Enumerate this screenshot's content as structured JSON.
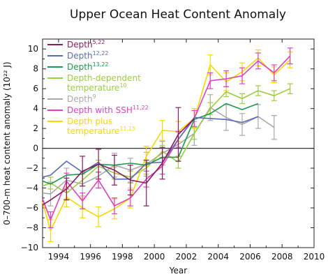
{
  "chart_data": {
    "type": "line",
    "title": "Upper Ocean Heat Content Anomaly",
    "xlabel": "Year",
    "ylabel": "0–700-m heat content anomaly (10²² J)",
    "xlim": [
      1993,
      2010
    ],
    "ylim": [
      -10,
      11
    ],
    "xticks": [
      1994,
      1996,
      1998,
      2000,
      2002,
      2004,
      2006,
      2008,
      2010
    ],
    "yticks": [
      -10,
      -8,
      -6,
      -4,
      -2,
      0,
      2,
      4,
      6,
      8,
      10
    ],
    "grid": false,
    "zero_line": true,
    "legend_position": "top-left",
    "series": [
      {
        "name": "Depth",
        "sup": "5,22",
        "color": "#8b1a5c",
        "x": [
          1993,
          1993.5,
          1994.5,
          1995.5,
          1996.5,
          1997.5,
          1998.5,
          1999.5,
          2000.5,
          2001.5,
          2002.5
        ],
        "y": [
          -5.7,
          -5.2,
          -4.1,
          -2.3,
          -1.6,
          -2.2,
          -3.2,
          -3.5,
          -1.5,
          1.4,
          3.0
        ],
        "err": [
          0,
          0,
          1.1,
          1.5,
          1.5,
          1.5,
          1.5,
          2.3,
          1.6,
          2.7,
          0
        ]
      },
      {
        "name": "Depth",
        "sup": "12,22",
        "color": "#5a6bb5",
        "x": [
          1993,
          1993.5,
          1994.5,
          1995.5,
          1996.5,
          1997.5,
          1998.5,
          1999.5,
          2000.5,
          2001.5,
          2002.5,
          2003.5,
          2004.5,
          2005.5,
          2006.5
        ],
        "y": [
          -2.9,
          -2.7,
          -1.3,
          -2.4,
          -1.4,
          -3.1,
          -3.1,
          -1.5,
          -1.4,
          0.9,
          3.1,
          3.0,
          2.9,
          2.6,
          3.2
        ],
        "err": [
          0,
          0,
          0,
          0,
          0,
          0,
          0,
          0,
          0,
          0,
          0,
          0,
          0,
          0,
          0
        ]
      },
      {
        "name": "Depth",
        "sup": "13,22",
        "color": "#1a9a4a",
        "x": [
          1993,
          1993.5,
          1994.5,
          1995.5,
          1996.5,
          1997.5,
          1998.5,
          1999.5,
          2000.5,
          2001.5,
          2002.5,
          2003.5,
          2004.5,
          2005.5,
          2006.5
        ],
        "y": [
          -3.3,
          -3.6,
          -2.7,
          -2.6,
          -1.6,
          -1.7,
          -1.5,
          -1.7,
          -0.9,
          -0.9,
          2.9,
          3.5,
          4.5,
          3.9,
          4.5
        ],
        "err": [
          0,
          0,
          0,
          0,
          0,
          0,
          0,
          0,
          0,
          0,
          0,
          0,
          0,
          0,
          0
        ]
      },
      {
        "name": "Depth-dependent temperature",
        "sup": "10",
        "color": "#9ccc3c",
        "x": [
          1993,
          1993.5,
          1994.5,
          1995.5,
          1996.5,
          1997.5,
          1998.5,
          1999.5,
          2000.5,
          2001.5,
          2002.5,
          2003.5,
          2004.5,
          2005.5,
          2006.5,
          2007.5,
          2008.5
        ],
        "y": [
          -3.8,
          -3.5,
          -4.5,
          -3.2,
          -1.8,
          -2.5,
          -2.9,
          -2.0,
          -0.3,
          -1.4,
          1.5,
          4.0,
          5.7,
          5.0,
          5.8,
          5.3,
          6.0
        ],
        "err": [
          0,
          0.6,
          0.6,
          0.6,
          0.6,
          0.6,
          0.6,
          0.6,
          0.6,
          0.6,
          0.6,
          0.6,
          0.5,
          0.5,
          0.5,
          0.5,
          0.5
        ]
      },
      {
        "name": "Depth",
        "sup": "9",
        "color": "#a8a8a8",
        "x": [
          1993,
          1993.5,
          1994.5,
          1995.5,
          1996.5,
          1997.5,
          1998.5,
          1999.5,
          2000.5,
          2001.5,
          2002.5,
          2003.5,
          2004.5,
          2005.5,
          2006.5,
          2007.5
        ],
        "y": [
          -4.5,
          -4.6,
          -3.2,
          -3.6,
          -2.8,
          -1.7,
          -2.2,
          -1.6,
          -0.5,
          0.4,
          1.5,
          4.1,
          3.1,
          2.4,
          3.2,
          2.1
        ],
        "err": [
          0,
          1.2,
          1.2,
          1.2,
          1.2,
          1.2,
          1.2,
          1.2,
          1.2,
          1.2,
          1.2,
          1.3,
          1.3,
          1.1,
          1.2,
          1.2
        ]
      },
      {
        "name": "Depth with SSH",
        "sup": "11,22",
        "color": "#e040c0",
        "x": [
          1993,
          1993.5,
          1994.5,
          1995.5,
          1996.5,
          1997.5,
          1998.5,
          1999.5,
          2000.5,
          2001.5,
          2002.5,
          2003.5,
          2004.5,
          2005.5,
          2006.5,
          2007.5,
          2008.5
        ],
        "y": [
          -5.1,
          -7.2,
          -3.3,
          -5.3,
          -3.2,
          -5.8,
          -5.0,
          -3.1,
          -1.8,
          0.9,
          3.0,
          6.8,
          7.0,
          7.3,
          8.8,
          7.6,
          9.3
        ],
        "err": [
          0,
          0.8,
          0.8,
          0.8,
          0.8,
          0.8,
          0.8,
          0.8,
          0.8,
          0.8,
          0.8,
          0.8,
          0.8,
          0.8,
          0.8,
          0.8,
          0.8
        ]
      },
      {
        "name": "Depth plus temperature",
        "sup": "11,15",
        "color": "#f5d800",
        "x": [
          1993,
          1993.5,
          1994.5,
          1995.5,
          1996.5,
          1997.5,
          1998.5,
          1999.5,
          2000.5,
          2001.5,
          2002.5,
          2003.5,
          2004.5,
          2005.5,
          2006.5,
          2007.5,
          2008.5
        ],
        "y": [
          -5.4,
          -8.3,
          -4.9,
          -6.0,
          -6.9,
          -6.1,
          -5.0,
          -0.8,
          1.8,
          1.7,
          3.0,
          8.4,
          6.7,
          7.7,
          9.1,
          7.4,
          8.9
        ],
        "err": [
          0,
          1.1,
          1.0,
          1.0,
          1.0,
          1.0,
          1.0,
          1.0,
          1.0,
          1.0,
          1.0,
          1.0,
          0.9,
          0.9,
          0.8,
          0.8,
          0.8
        ]
      }
    ],
    "legend": [
      {
        "lines": [
          "Depth"
        ],
        "sup": "5,22",
        "color": "#8b1a5c"
      },
      {
        "lines": [
          "Depth"
        ],
        "sup": "12,22",
        "color": "#5a6bb5"
      },
      {
        "lines": [
          "Depth"
        ],
        "sup": "13,22",
        "color": "#1a9a4a"
      },
      {
        "lines": [
          "Depth-dependent",
          "temperature"
        ],
        "sup": "10",
        "color": "#9ccc3c"
      },
      {
        "lines": [
          "Depth"
        ],
        "sup": "9",
        "color": "#a8a8a8"
      },
      {
        "lines": [
          "Depth with SSH"
        ],
        "sup": "11,22",
        "color": "#e040c0"
      },
      {
        "lines": [
          "Depth plus",
          "temperature"
        ],
        "sup": "11,15",
        "color": "#f5d800"
      }
    ]
  }
}
